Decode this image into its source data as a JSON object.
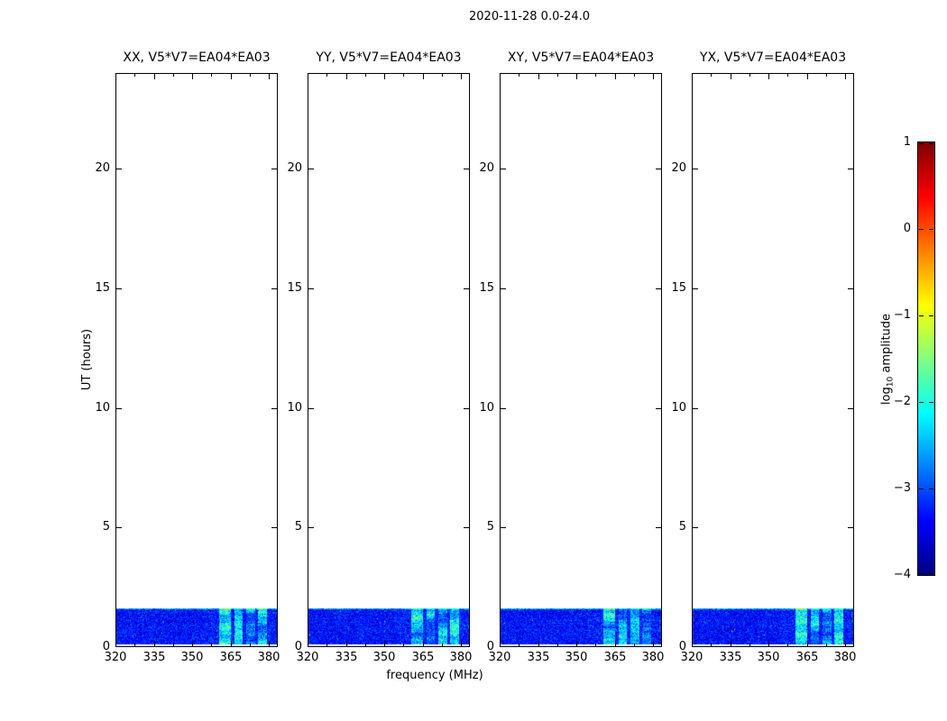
{
  "title": "2020-11-28 0.0-24.0",
  "xlabel": "frequency (MHz)",
  "ylabel": "UT (hours)",
  "panels": [
    {
      "title": "XX, V5*V7=EA04*EA03",
      "seed": 1011
    },
    {
      "title": "YY, V5*V7=EA04*EA03",
      "seed": 2022
    },
    {
      "title": "XY, V5*V7=EA04*EA03",
      "seed": 3033
    },
    {
      "title": "YX, V5*V7=EA04*EA03",
      "seed": 4044
    }
  ],
  "axes": {
    "x_tick_labels": [
      "320",
      "335",
      "350",
      "365",
      "380"
    ],
    "y_tick_labels": [
      "0",
      "5",
      "10",
      "15",
      "20"
    ]
  },
  "colorbar": {
    "label_prefix": "log",
    "label_sub": "10",
    "label_suffix": " amplitude",
    "tick_labels": [
      "1",
      "0",
      "−1",
      "−2",
      "−3",
      "−4"
    ],
    "tick_values": [
      1,
      0,
      -1,
      -2,
      -3,
      -4
    ]
  },
  "chart_data": {
    "type": "heatmap",
    "suptitle": "2020-11-28 0.0-24.0",
    "subplot_titles": [
      "XX, V5*V7=EA04*EA03",
      "YY, V5*V7=EA04*EA03",
      "XY, V5*V7=EA04*EA03",
      "YX, V5*V7=EA04*EA03"
    ],
    "xlabel": "frequency (MHz)",
    "ylabel": "UT (hours)",
    "xlim": [
      320,
      383.5
    ],
    "ylim": [
      0,
      24
    ],
    "x_ticks": [
      320,
      335,
      350,
      365,
      380
    ],
    "x_minor_ticks": [
      327.5,
      342.5,
      357.5,
      372.5
    ],
    "y_ticks": [
      0,
      5,
      10,
      15,
      20
    ],
    "grid": false,
    "legend": false,
    "colormap": "jet",
    "colorbar_label": "log10 amplitude",
    "colorbar_range": [
      -4,
      1
    ],
    "colorbar_ticks": [
      1,
      0,
      -1,
      -2,
      -3,
      -4
    ],
    "data_time_extent_hours": [
      0.15,
      1.63
    ],
    "baseline_log10_amplitude": -3.3,
    "noise_sigma": 0.25,
    "high_band_bias_above_mhz": 354,
    "rfi_bands": [
      {
        "mhz": [
          360.5,
          365.0
        ],
        "boost": 1.15
      },
      {
        "mhz": [
          366.5,
          369.5
        ],
        "boost": 0.95
      },
      {
        "mhz": [
          371.0,
          374.5
        ],
        "boost": 1.0
      },
      {
        "mhz": [
          375.5,
          379.0
        ],
        "boost": 1.1
      }
    ]
  }
}
